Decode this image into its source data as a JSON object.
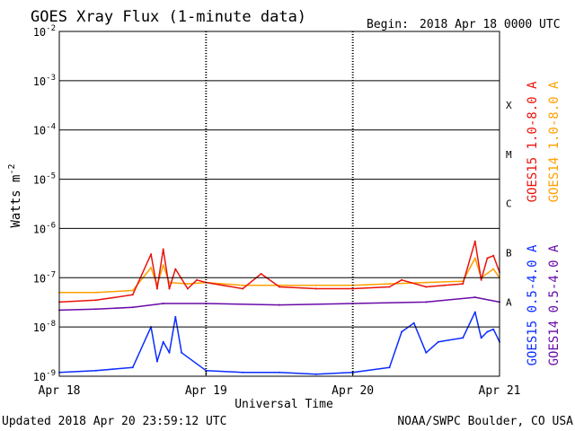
{
  "chart_data": {
    "type": "line",
    "title": "GOES Xray Flux (1-minute data)",
    "begin_label": "Begin:",
    "begin_value": "2018 Apr 18 0000 UTC",
    "xlabel": "Universal Time",
    "ylabel": "Watts m",
    "ylabel_exponent": "-2",
    "yscale": "log",
    "ylim": [
      1e-09,
      0.01
    ],
    "xlim": [
      "2018-04-18 00:00",
      "2018-04-21 00:00"
    ],
    "grid": true,
    "x_ticks": [
      "Apr 18",
      "Apr 19",
      "Apr 20",
      "Apr 21"
    ],
    "y_ticks": [
      {
        "base": "10",
        "exp": "-2",
        "value": 0.01
      },
      {
        "base": "10",
        "exp": "-3",
        "value": 0.001
      },
      {
        "base": "10",
        "exp": "-4",
        "value": 0.0001
      },
      {
        "base": "10",
        "exp": "-5",
        "value": 1e-05
      },
      {
        "base": "10",
        "exp": "-6",
        "value": 1e-06
      },
      {
        "base": "10",
        "exp": "-7",
        "value": 1e-07
      },
      {
        "base": "10",
        "exp": "-8",
        "value": 1e-08
      },
      {
        "base": "10",
        "exp": "-9",
        "value": 1e-09
      }
    ],
    "flare_classes": [
      {
        "label": "X",
        "value": 0.00032
      },
      {
        "label": "M",
        "value": 3.2e-05
      },
      {
        "label": "C",
        "value": 3.2e-06
      },
      {
        "label": "B",
        "value": 3.2e-07
      },
      {
        "label": "A",
        "value": 3.2e-08
      }
    ],
    "legend_placement": "right",
    "series": [
      {
        "name": "GOES15 1.0-8.0 A",
        "color": "#e8140c",
        "x": [
          "2018-04-18 00:00",
          "2018-04-18 06:00",
          "2018-04-18 12:00",
          "2018-04-18 15:00",
          "2018-04-18 16:00",
          "2018-04-18 17:00",
          "2018-04-18 18:00",
          "2018-04-18 19:00",
          "2018-04-18 21:00",
          "2018-04-18 22:30",
          "2018-04-19 00:00",
          "2018-04-19 06:00",
          "2018-04-19 09:00",
          "2018-04-19 12:00",
          "2018-04-19 18:00",
          "2018-04-20 00:00",
          "2018-04-20 06:00",
          "2018-04-20 08:00",
          "2018-04-20 12:00",
          "2018-04-20 15:00",
          "2018-04-20 18:00",
          "2018-04-20 20:00",
          "2018-04-20 21:00",
          "2018-04-20 22:00",
          "2018-04-20 23:00",
          "2018-04-21 00:00"
        ],
        "values": [
          3.2e-08,
          3.5e-08,
          4.5e-08,
          3e-07,
          6e-08,
          3.8e-07,
          6e-08,
          1.5e-07,
          6e-08,
          9e-08,
          8e-08,
          6e-08,
          1.2e-07,
          6.5e-08,
          6e-08,
          6e-08,
          6.5e-08,
          9e-08,
          6.5e-08,
          7e-08,
          7.5e-08,
          5.5e-07,
          9e-08,
          2.5e-07,
          2.8e-07,
          1.3e-07
        ]
      },
      {
        "name": "GOES14 1.0-8.0 A",
        "color": "#ffa000",
        "x": [
          "2018-04-18 00:00",
          "2018-04-18 06:00",
          "2018-04-18 12:00",
          "2018-04-18 15:00",
          "2018-04-18 16:00",
          "2018-04-18 17:00",
          "2018-04-18 18:00",
          "2018-04-18 21:00",
          "2018-04-19 00:00",
          "2018-04-19 06:00",
          "2018-04-19 12:00",
          "2018-04-19 18:00",
          "2018-04-20 00:00",
          "2018-04-20 06:00",
          "2018-04-20 12:00",
          "2018-04-20 18:00",
          "2018-04-20 20:00",
          "2018-04-20 21:00",
          "2018-04-20 23:00",
          "2018-04-21 00:00"
        ],
        "values": [
          5e-08,
          5e-08,
          5.5e-08,
          1.6e-07,
          7e-08,
          1.8e-07,
          8e-08,
          7.5e-08,
          8e-08,
          7e-08,
          7e-08,
          7e-08,
          7e-08,
          7.5e-08,
          8e-08,
          8.5e-08,
          2.5e-07,
          1e-07,
          1.5e-07,
          1e-07
        ]
      },
      {
        "name": "GOES15 0.5-4.0 A",
        "color": "#0a2cff",
        "x": [
          "2018-04-18 00:00",
          "2018-04-18 06:00",
          "2018-04-18 12:00",
          "2018-04-18 15:00",
          "2018-04-18 16:00",
          "2018-04-18 17:00",
          "2018-04-18 18:00",
          "2018-04-18 19:00",
          "2018-04-18 20:00",
          "2018-04-19 00:00",
          "2018-04-19 06:00",
          "2018-04-19 12:00",
          "2018-04-19 18:00",
          "2018-04-20 00:00",
          "2018-04-20 06:00",
          "2018-04-20 08:00",
          "2018-04-20 10:00",
          "2018-04-20 12:00",
          "2018-04-20 14:00",
          "2018-04-20 18:00",
          "2018-04-20 20:00",
          "2018-04-20 21:00",
          "2018-04-20 22:00",
          "2018-04-20 23:00",
          "2018-04-21 00:00"
        ],
        "values": [
          1.2e-09,
          1.3e-09,
          1.5e-09,
          1e-08,
          2e-09,
          5e-09,
          3e-09,
          1.6e-08,
          3e-09,
          1.3e-09,
          1.2e-09,
          1.2e-09,
          1.1e-09,
          1.2e-09,
          1.5e-09,
          8e-09,
          1.2e-08,
          3e-09,
          5e-09,
          6e-09,
          2e-08,
          6e-09,
          8e-09,
          9e-09,
          5e-09
        ]
      },
      {
        "name": "GOES14 0.5-4.0 A",
        "color": "#6a0aa8",
        "x": [
          "2018-04-18 00:00",
          "2018-04-18 06:00",
          "2018-04-18 12:00",
          "2018-04-18 17:00",
          "2018-04-19 00:00",
          "2018-04-19 12:00",
          "2018-04-20 00:00",
          "2018-04-20 12:00",
          "2018-04-20 20:00",
          "2018-04-21 00:00"
        ],
        "values": [
          2.2e-08,
          2.3e-08,
          2.5e-08,
          3e-08,
          3e-08,
          2.8e-08,
          3e-08,
          3.2e-08,
          4e-08,
          3.2e-08
        ]
      }
    ]
  },
  "footer": {
    "updated": "Updated 2018 Apr 20 23:59:12 UTC",
    "credit": "NOAA/SWPC Boulder, CO USA"
  }
}
